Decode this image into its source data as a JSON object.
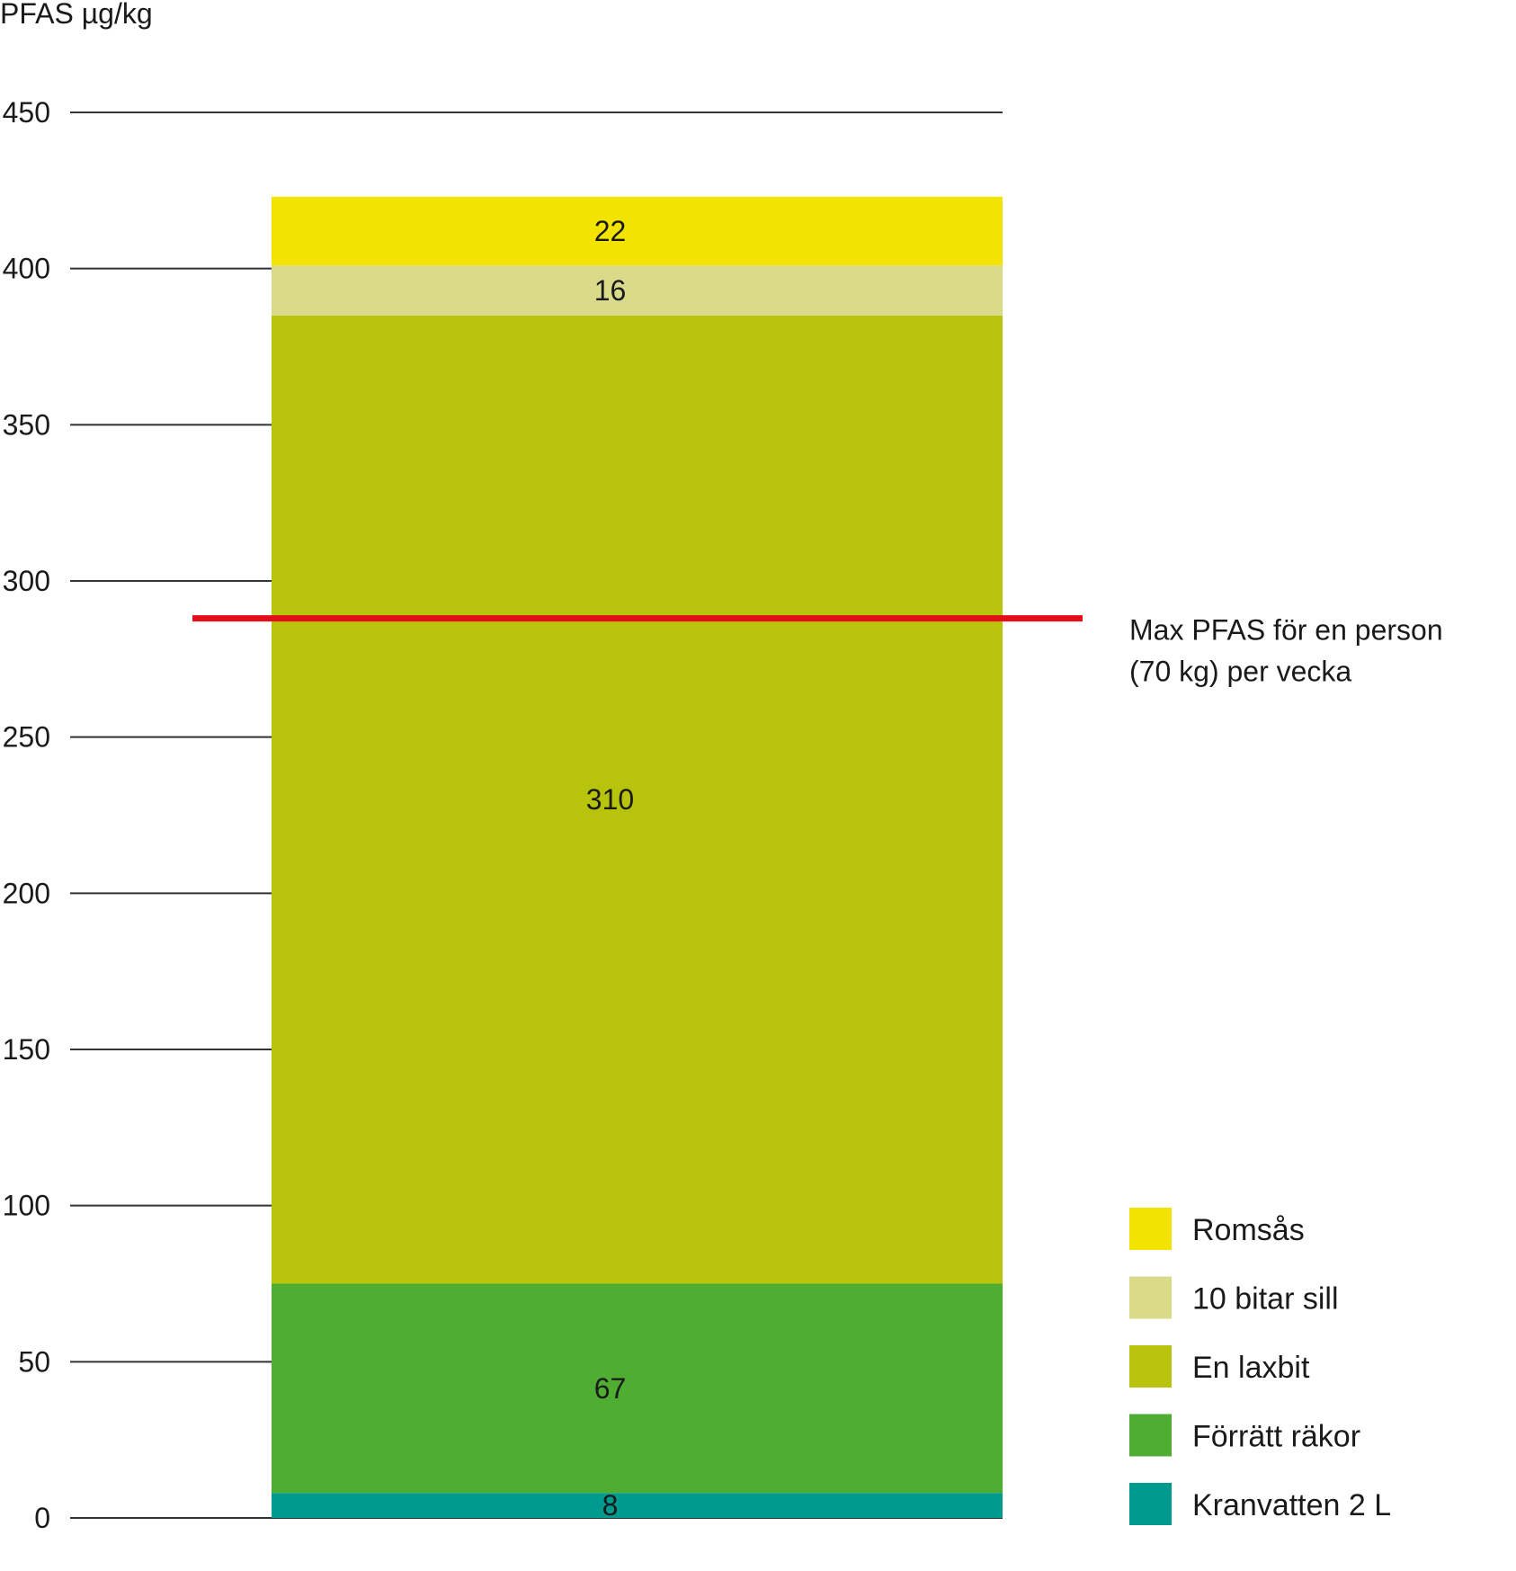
{
  "chart_data": {
    "type": "bar",
    "stacked": true,
    "ylabel": "PFAS µg/kg",
    "ylim": [
      0,
      450
    ],
    "yticks": [
      0,
      50,
      100,
      150,
      200,
      250,
      300,
      350,
      400,
      450
    ],
    "grid": true,
    "legend_position": "bottom-right",
    "series": [
      {
        "name": "Kranvatten 2 L",
        "value": 8,
        "color": "#009A8E"
      },
      {
        "name": "Förrätt räkor",
        "value": 67,
        "color": "#4FAE32"
      },
      {
        "name": "En laxbit",
        "value": 310,
        "color": "#B8C30B"
      },
      {
        "name": "10 bitar sill",
        "value": 16,
        "color": "#DADA8B"
      },
      {
        "name": "Romsås",
        "value": 22,
        "color": "#F2E400"
      }
    ],
    "reference_line": {
      "value": 288,
      "label_lines": [
        "Max PFAS för en person",
        "(70 kg) per vecka"
      ],
      "color": "#E30E17"
    }
  }
}
